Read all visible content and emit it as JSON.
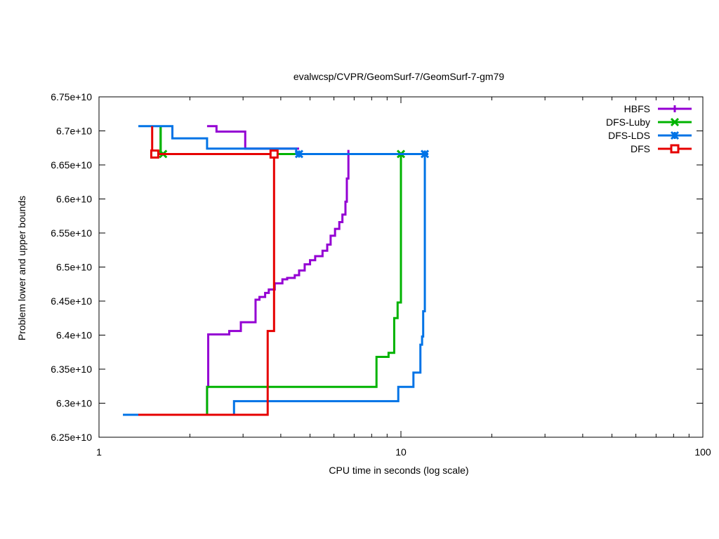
{
  "chart_data": {
    "type": "line",
    "title": "evalwcsp/CVPR/GeomSurf-7/GeomSurf-7-gm79",
    "xlabel": "CPU time in seconds (log scale)",
    "ylabel": "Problem lower and upper bounds",
    "xscale": "log",
    "xlim": [
      1,
      100
    ],
    "ylim": [
      62500000000,
      67500000000
    ],
    "x_ticks": [
      {
        "value": 1,
        "label": "1"
      },
      {
        "value": 10,
        "label": "10"
      },
      {
        "value": 100,
        "label": "100"
      }
    ],
    "y_ticks": [
      {
        "value": 62500000000,
        "label": "6.25e+10"
      },
      {
        "value": 63000000000,
        "label": "6.3e+10"
      },
      {
        "value": 63500000000,
        "label": "6.35e+10"
      },
      {
        "value": 64000000000,
        "label": "6.4e+10"
      },
      {
        "value": 64500000000,
        "label": "6.45e+10"
      },
      {
        "value": 65000000000,
        "label": "6.5e+10"
      },
      {
        "value": 65500000000,
        "label": "6.55e+10"
      },
      {
        "value": 66000000000,
        "label": "6.6e+10"
      },
      {
        "value": 66500000000,
        "label": "6.65e+10"
      },
      {
        "value": 67000000000,
        "label": "6.7e+10"
      },
      {
        "value": 67500000000,
        "label": "6.75e+10"
      }
    ],
    "grid": false,
    "legend_position": "top-right",
    "series": [
      {
        "name": "HBFS",
        "color": "#9400d3",
        "marker": "plus",
        "upper": [
          [
            2.28,
            67070000000
          ],
          [
            2.45,
            67070000000
          ],
          [
            2.45,
            66990000000
          ],
          [
            3.05,
            66990000000
          ],
          [
            3.05,
            66740000000
          ],
          [
            4.6,
            66740000000
          ]
        ],
        "lower": [
          [
            2.28,
            62820000000
          ],
          [
            2.28,
            63240000000
          ],
          [
            2.3,
            63240000000
          ],
          [
            2.3,
            64010000000
          ],
          [
            2.7,
            64010000000
          ],
          [
            2.7,
            64060000000
          ],
          [
            2.95,
            64060000000
          ],
          [
            2.95,
            64190000000
          ],
          [
            3.3,
            64190000000
          ],
          [
            3.3,
            64520000000
          ],
          [
            3.4,
            64520000000
          ],
          [
            3.4,
            64560000000
          ],
          [
            3.55,
            64560000000
          ],
          [
            3.55,
            64620000000
          ],
          [
            3.65,
            64620000000
          ],
          [
            3.65,
            64670000000
          ],
          [
            3.82,
            64670000000
          ],
          [
            3.82,
            64760000000
          ],
          [
            4.05,
            64760000000
          ],
          [
            4.05,
            64820000000
          ],
          [
            4.2,
            64820000000
          ],
          [
            4.2,
            64840000000
          ],
          [
            4.45,
            64840000000
          ],
          [
            4.45,
            64880000000
          ],
          [
            4.6,
            64880000000
          ],
          [
            4.6,
            64950000000
          ],
          [
            4.8,
            64950000000
          ],
          [
            4.8,
            65040000000
          ],
          [
            5.0,
            65040000000
          ],
          [
            5.0,
            65100000000
          ],
          [
            5.2,
            65100000000
          ],
          [
            5.2,
            65160000000
          ],
          [
            5.5,
            65160000000
          ],
          [
            5.5,
            65240000000
          ],
          [
            5.7,
            65240000000
          ],
          [
            5.7,
            65330000000
          ],
          [
            5.85,
            65330000000
          ],
          [
            5.85,
            65460000000
          ],
          [
            6.05,
            65460000000
          ],
          [
            6.05,
            65560000000
          ],
          [
            6.25,
            65560000000
          ],
          [
            6.25,
            65660000000
          ],
          [
            6.4,
            65660000000
          ],
          [
            6.4,
            65770000000
          ],
          [
            6.55,
            65770000000
          ],
          [
            6.55,
            65960000000
          ],
          [
            6.62,
            65960000000
          ],
          [
            6.62,
            66300000000
          ],
          [
            6.7,
            66300000000
          ],
          [
            6.7,
            66720000000
          ]
        ],
        "marker_points": []
      },
      {
        "name": "DFS-Luby",
        "color": "#00b300",
        "marker": "x",
        "upper": [
          [
            1.6,
            67070000000
          ],
          [
            1.6,
            66660000000
          ],
          [
            10.0,
            66660000000
          ]
        ],
        "lower": [
          [
            1.6,
            66660000000
          ],
          [
            1.6,
            67070000000
          ]
        ],
        "lower2": [
          [
            2.28,
            62820000000
          ],
          [
            2.28,
            63240000000
          ],
          [
            8.3,
            63240000000
          ],
          [
            8.3,
            63680000000
          ],
          [
            9.1,
            63680000000
          ],
          [
            9.1,
            63740000000
          ],
          [
            9.5,
            63740000000
          ],
          [
            9.5,
            64250000000
          ],
          [
            9.75,
            64250000000
          ],
          [
            9.75,
            64480000000
          ],
          [
            10.0,
            64480000000
          ],
          [
            10.0,
            66660000000
          ]
        ],
        "marker_points": [
          [
            1.63,
            66660000000
          ],
          [
            10.0,
            66660000000
          ]
        ]
      },
      {
        "name": "DFS-LDS",
        "color": "#0073e6",
        "marker": "star",
        "upper": [
          [
            1.35,
            67070000000
          ],
          [
            1.75,
            67070000000
          ],
          [
            1.75,
            66890000000
          ],
          [
            2.28,
            66890000000
          ],
          [
            2.28,
            66740000000
          ],
          [
            4.5,
            66740000000
          ],
          [
            4.5,
            66660000000
          ],
          [
            12.0,
            66660000000
          ]
        ],
        "lower": [
          [
            1.2,
            62830000000
          ],
          [
            2.8,
            62830000000
          ],
          [
            2.8,
            63030000000
          ],
          [
            9.8,
            63030000000
          ],
          [
            9.8,
            63240000000
          ],
          [
            11.0,
            63240000000
          ],
          [
            11.0,
            63450000000
          ],
          [
            11.6,
            63450000000
          ],
          [
            11.6,
            63860000000
          ],
          [
            11.75,
            63860000000
          ],
          [
            11.75,
            63980000000
          ],
          [
            11.85,
            63980000000
          ],
          [
            11.85,
            64350000000
          ],
          [
            12.0,
            64350000000
          ],
          [
            12.0,
            66660000000
          ]
        ],
        "marker_points": [
          [
            4.6,
            66660000000
          ],
          [
            12.0,
            66660000000
          ]
        ]
      },
      {
        "name": "DFS",
        "color": "#e60000",
        "marker": "square",
        "upper": [
          [
            1.5,
            67070000000
          ],
          [
            1.5,
            66700000000
          ],
          [
            1.57,
            66700000000
          ],
          [
            1.57,
            66660000000
          ],
          [
            3.8,
            66660000000
          ]
        ],
        "lower": [
          [
            1.35,
            62830000000
          ],
          [
            3.62,
            62830000000
          ],
          [
            3.62,
            64060000000
          ],
          [
            3.8,
            64060000000
          ],
          [
            3.8,
            66660000000
          ]
        ],
        "marker_points": [
          [
            1.53,
            66660000000
          ],
          [
            3.8,
            66660000000
          ]
        ]
      }
    ]
  }
}
